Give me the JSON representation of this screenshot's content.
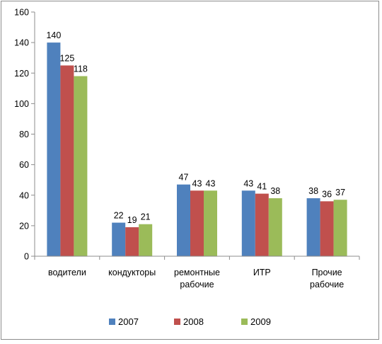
{
  "chart_data": {
    "type": "bar",
    "title": "",
    "xlabel": "",
    "ylabel": "",
    "ylim": [
      0,
      160
    ],
    "yticks": [
      0,
      20,
      40,
      60,
      80,
      100,
      120,
      140,
      160
    ],
    "grid": false,
    "legend_position": "bottom",
    "categories": [
      [
        "водители"
      ],
      [
        "кондукторы"
      ],
      [
        "ремонтные",
        "рабочие"
      ],
      [
        "ИТР"
      ],
      [
        "Прочие",
        "рабочие"
      ]
    ],
    "series": [
      {
        "name": "2007",
        "color": "#4f81bd",
        "values": [
          140,
          22,
          47,
          43,
          38
        ]
      },
      {
        "name": "2008",
        "color": "#c0504d",
        "values": [
          125,
          19,
          43,
          41,
          36
        ]
      },
      {
        "name": "2009",
        "color": "#9bbb59",
        "values": [
          118,
          21,
          43,
          38,
          37
        ]
      }
    ]
  }
}
